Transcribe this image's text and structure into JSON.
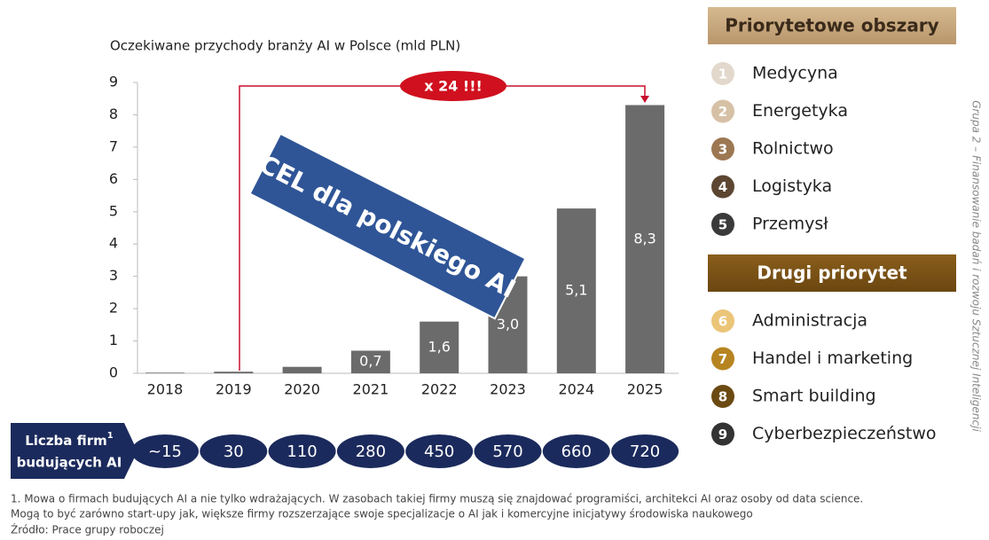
{
  "chart_data": {
    "type": "bar",
    "title": "Oczekiwane przychody branży AI w Polsce (mld PLN)",
    "categories": [
      "2018",
      "2019",
      "2020",
      "2021",
      "2022",
      "2023",
      "2024",
      "2025"
    ],
    "values": [
      0.02,
      0.05,
      0.2,
      0.7,
      1.6,
      3.0,
      5.1,
      8.3
    ],
    "value_labels": [
      null,
      null,
      null,
      "0,7",
      "1,6",
      "3,0",
      "5,1",
      "8,3"
    ],
    "color": "#6b6b6b",
    "ylim": [
      0,
      9
    ],
    "yticks": [
      0,
      1,
      2,
      3,
      4,
      5,
      6,
      7,
      8,
      9
    ],
    "grid": false,
    "annotations": {
      "growth": "x 24 !!!",
      "goal": "CEL dla polskiego AI"
    }
  },
  "firms": {
    "label": [
      "Liczba firm",
      "budujących AI"
    ],
    "sup": "1",
    "values": [
      "~15",
      "30",
      "110",
      "280",
      "450",
      "570",
      "660",
      "720"
    ]
  },
  "priorities": {
    "title": "Priorytetowe obszary",
    "items": [
      {
        "num": "1",
        "label": "Medycyna",
        "color": "#e3d8cc"
      },
      {
        "num": "2",
        "label": "Energetyka",
        "color": "#d6c1a6"
      },
      {
        "num": "3",
        "label": "Rolnictwo",
        "color": "#9c7752"
      },
      {
        "num": "4",
        "label": "Logistyka",
        "color": "#5c4631"
      },
      {
        "num": "5",
        "label": "Przemysł",
        "color": "#3a3a3a"
      }
    ]
  },
  "second": {
    "title": "Drugi priorytet",
    "items": [
      {
        "num": "6",
        "label": "Administracja",
        "color": "#ebc578"
      },
      {
        "num": "7",
        "label": "Handel i marketing",
        "color": "#b68420"
      },
      {
        "num": "8",
        "label": "Smart building",
        "color": "#6b4a12"
      },
      {
        "num": "9",
        "label": "Cyberbezpieczeństwo",
        "color": "#333333"
      }
    ]
  },
  "footnotes": [
    "1. Mowa o firmach budujących AI a nie tylko wdrażających. W zasobach takiej firmy muszą się znajdować programiści, architekci AI oraz osoby od data science.",
    "Mogą to być zarówno start-upy jak, większe firmy rozszerzające  swoje specjalizacje o AI jak i komercyjne inicjatywy środowiska naukowego",
    "Źródło: Prace grupy roboczej"
  ],
  "side_text": "Grupa 2 – Finansowanie badań i rozwoju Sztucznej Inteligencji"
}
